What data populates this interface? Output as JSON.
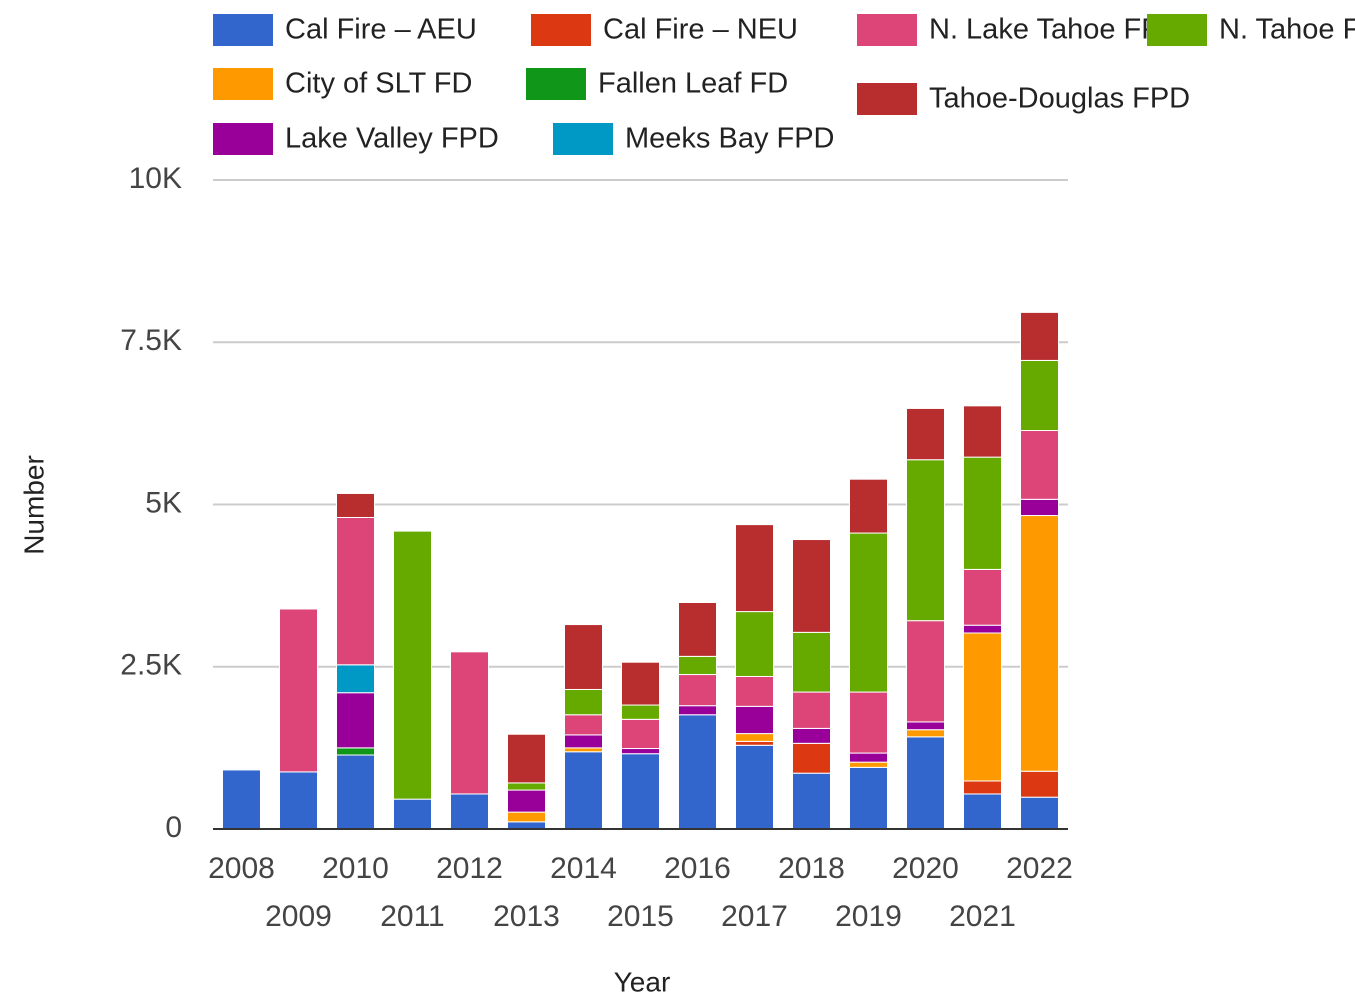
{
  "chart_data": {
    "type": "stacked_bar",
    "x_label": "Year",
    "y_label": "Number",
    "categories": [
      "2008",
      "2009",
      "2010",
      "2011",
      "2012",
      "2013",
      "2014",
      "2015",
      "2016",
      "2017",
      "2018",
      "2019",
      "2020",
      "2021",
      "2022"
    ],
    "series": [
      {
        "name": "Cal Fire – AEU",
        "color": "#3366cc",
        "values": [
          910,
          880,
          1140,
          460,
          540,
          110,
          1190,
          1160,
          1760,
          1290,
          860,
          950,
          1420,
          540,
          490
        ]
      },
      {
        "name": "Cal Fire – NEU",
        "color": "#dc3912",
        "values": [
          0,
          0,
          0,
          0,
          0,
          0,
          0,
          0,
          0,
          60,
          460,
          0,
          0,
          200,
          400
        ]
      },
      {
        "name": "City of SLT FD",
        "color": "#ff9900",
        "values": [
          0,
          0,
          0,
          0,
          0,
          150,
          60,
          0,
          0,
          120,
          0,
          80,
          110,
          2280,
          3940
        ]
      },
      {
        "name": "Fallen Leaf FD",
        "color": "#109618",
        "values": [
          0,
          0,
          110,
          0,
          0,
          0,
          0,
          0,
          0,
          0,
          0,
          0,
          0,
          0,
          0
        ]
      },
      {
        "name": "Lake Valley FPD",
        "color": "#990099",
        "values": [
          0,
          0,
          850,
          0,
          0,
          340,
          200,
          80,
          140,
          420,
          230,
          140,
          120,
          120,
          250
        ]
      },
      {
        "name": "Meeks Bay FPD",
        "color": "#0099c6",
        "values": [
          0,
          0,
          430,
          0,
          0,
          0,
          0,
          0,
          0,
          0,
          0,
          0,
          0,
          0,
          0
        ]
      },
      {
        "name": "N. Lake Tahoe FPD",
        "color": "#dd4477",
        "values": [
          0,
          2510,
          2270,
          0,
          2190,
          0,
          310,
          450,
          480,
          460,
          560,
          940,
          1560,
          860,
          1060
        ]
      },
      {
        "name": "N. Tahoe FPD",
        "color": "#66aa00",
        "values": [
          0,
          0,
          0,
          4130,
          0,
          110,
          390,
          220,
          280,
          1000,
          920,
          2450,
          2480,
          1730,
          1080
        ]
      },
      {
        "name": "Tahoe-Douglas FPD",
        "color": "#b82e2e",
        "values": [
          0,
          0,
          370,
          0,
          0,
          750,
          1000,
          660,
          830,
          1340,
          1430,
          830,
          790,
          790,
          740
        ]
      }
    ],
    "ylim": [
      0,
      10000
    ],
    "yticks": [
      {
        "value": 0,
        "label": "0"
      },
      {
        "value": 2500,
        "label": "2.5K"
      },
      {
        "value": 5000,
        "label": "5K"
      },
      {
        "value": 7500,
        "label": "7.5K"
      },
      {
        "value": 10000,
        "label": "10K"
      }
    ],
    "grid": true
  }
}
